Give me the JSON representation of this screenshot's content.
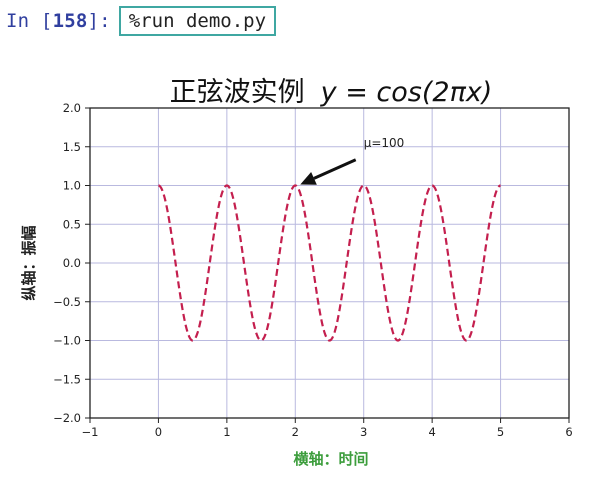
{
  "cell": {
    "prompt_prefix": "In [",
    "prompt_number": "158",
    "prompt_suffix": "]:",
    "code": "%run demo.py"
  },
  "chart_data": {
    "type": "line",
    "title": "正弦波实例 y = cos(2πx)",
    "title_text": "正弦波实例",
    "title_math": "y = cos(2πx)",
    "xlabel": "横轴：时间",
    "ylabel": "纵轴：振幅",
    "xlim": [
      -1,
      6
    ],
    "ylim": [
      -2.0,
      2.0
    ],
    "xticks": [
      -1,
      0,
      1,
      2,
      3,
      4,
      5,
      6
    ],
    "yticks": [
      -2.0,
      -1.5,
      -1.0,
      -0.5,
      0.0,
      0.5,
      1.0,
      1.5,
      2.0
    ],
    "xtick_labels": [
      "−1",
      "0",
      "1",
      "2",
      "3",
      "4",
      "5",
      "6"
    ],
    "ytick_labels": [
      "−2.0",
      "−1.5",
      "−1.0",
      "−0.5",
      "0.0",
      "0.5",
      "1.0",
      "1.5",
      "2.0"
    ],
    "grid": true,
    "series": [
      {
        "function": "cos(2*pi*x)",
        "x_range": [
          0,
          5
        ],
        "color": "#c41f4e",
        "linestyle": "dashed"
      }
    ],
    "annotation": {
      "text": "μ=100",
      "point": [
        2,
        1.0
      ],
      "text_position": [
        3,
        1.5
      ]
    },
    "colors": {
      "line": "#c41f4e",
      "grid": "#b9b9df",
      "axes": "#222222",
      "xlabel": "#3c9d3c"
    }
  }
}
